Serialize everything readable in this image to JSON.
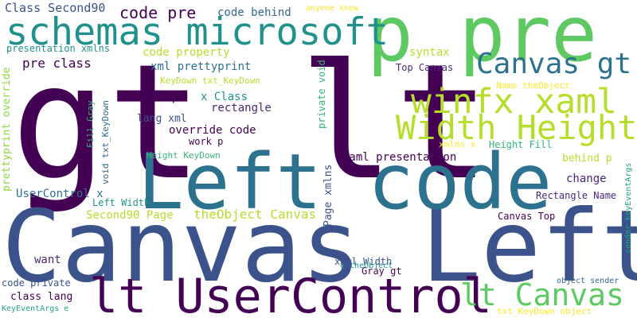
{
  "words": [
    {
      "text": "gt lt",
      "color": "#440154"
    },
    {
      "text": "Canvas Left",
      "color": "#3b528b"
    },
    {
      "text": "Left code",
      "color": "#2c728e"
    },
    {
      "text": "p pre",
      "color": "#5ec962"
    },
    {
      "text": "lt UserControl",
      "color": "#440154"
    },
    {
      "text": "schemas microsoft",
      "color": "#21918c"
    },
    {
      "text": "winfx xaml",
      "color": "#b5de2b"
    },
    {
      "text": "Width Height",
      "color": "#b5de2b"
    },
    {
      "text": "Canvas gt",
      "color": "#2c728e"
    },
    {
      "text": "lt Canvas",
      "color": "#5ec962"
    },
    {
      "text": "code pre",
      "color": "#440154"
    },
    {
      "text": "code behind",
      "color": "#31688e"
    },
    {
      "text": "Class Second90",
      "color": "#3b528b"
    },
    {
      "text": "anyone know",
      "color": "#fde725"
    },
    {
      "text": "presentation xmlns",
      "color": "#21918c"
    },
    {
      "text": "code property",
      "color": "#b5de2b"
    },
    {
      "text": "syntax",
      "color": "#b5de2b"
    },
    {
      "text": "pre class",
      "color": "#440154"
    },
    {
      "text": "xml prettyprint",
      "color": "#2c728e"
    },
    {
      "text": "private void",
      "color": "#35b779"
    },
    {
      "text": "Top Canvas",
      "color": "#482878"
    },
    {
      "text": "KeyDown txt_KeyDown",
      "color": "#b5de2b"
    },
    {
      "text": "Name theObject",
      "color": "#fde725"
    },
    {
      "text": "pre p",
      "color": "#440154"
    },
    {
      "text": "x Class",
      "color": "#21918c"
    },
    {
      "text": "rectangle",
      "color": "#482878"
    },
    {
      "text": "prettyprint override",
      "color": "#90d743"
    },
    {
      "text": "lang xml",
      "color": "#3b528b"
    },
    {
      "text": "override code",
      "color": "#440154"
    },
    {
      "text": "void txt_KeyDown",
      "color": "#31688e"
    },
    {
      "text": "Fill Gray",
      "color": "#35b779"
    },
    {
      "text": "work p",
      "color": "#440154"
    },
    {
      "text": "xmlns x",
      "color": "#fde725"
    },
    {
      "text": "Height Fill",
      "color": "#35b779"
    },
    {
      "text": "sender KeyEventArgs",
      "color": "#20a486"
    },
    {
      "text": "Height KeyDown",
      "color": "#35b779"
    },
    {
      "text": "xaml presentation",
      "color": "#440154"
    },
    {
      "text": "behind p",
      "color": "#b5de2b"
    },
    {
      "text": "Page xmlns",
      "color": "#3b528b"
    },
    {
      "text": "change",
      "color": "#482878"
    },
    {
      "text": "UserControl x",
      "color": "#2c728e"
    },
    {
      "text": "Left Width",
      "color": "#21918c"
    },
    {
      "text": "Rectangle Name",
      "color": "#482878"
    },
    {
      "text": "Second90 Page",
      "color": "#b5de2b"
    },
    {
      "text": "theObject Canvas",
      "color": "#b5de2b"
    },
    {
      "text": "Canvas Top",
      "color": "#440154"
    },
    {
      "text": "want",
      "color": "#482878"
    },
    {
      "text": "xaml Width",
      "color": "#3b528b"
    },
    {
      "text": "Gray gt",
      "color": "#440154"
    },
    {
      "text": "e theObject",
      "color": "#21918c"
    },
    {
      "text": "code private",
      "color": "#3b528b"
    },
    {
      "text": "class lang",
      "color": "#440154"
    },
    {
      "text": "object sender",
      "color": "#31688e"
    },
    {
      "text": "KeyEventArgs e",
      "color": "#20a486"
    },
    {
      "text": "txt_KeyDown object",
      "color": "#fde725"
    }
  ]
}
